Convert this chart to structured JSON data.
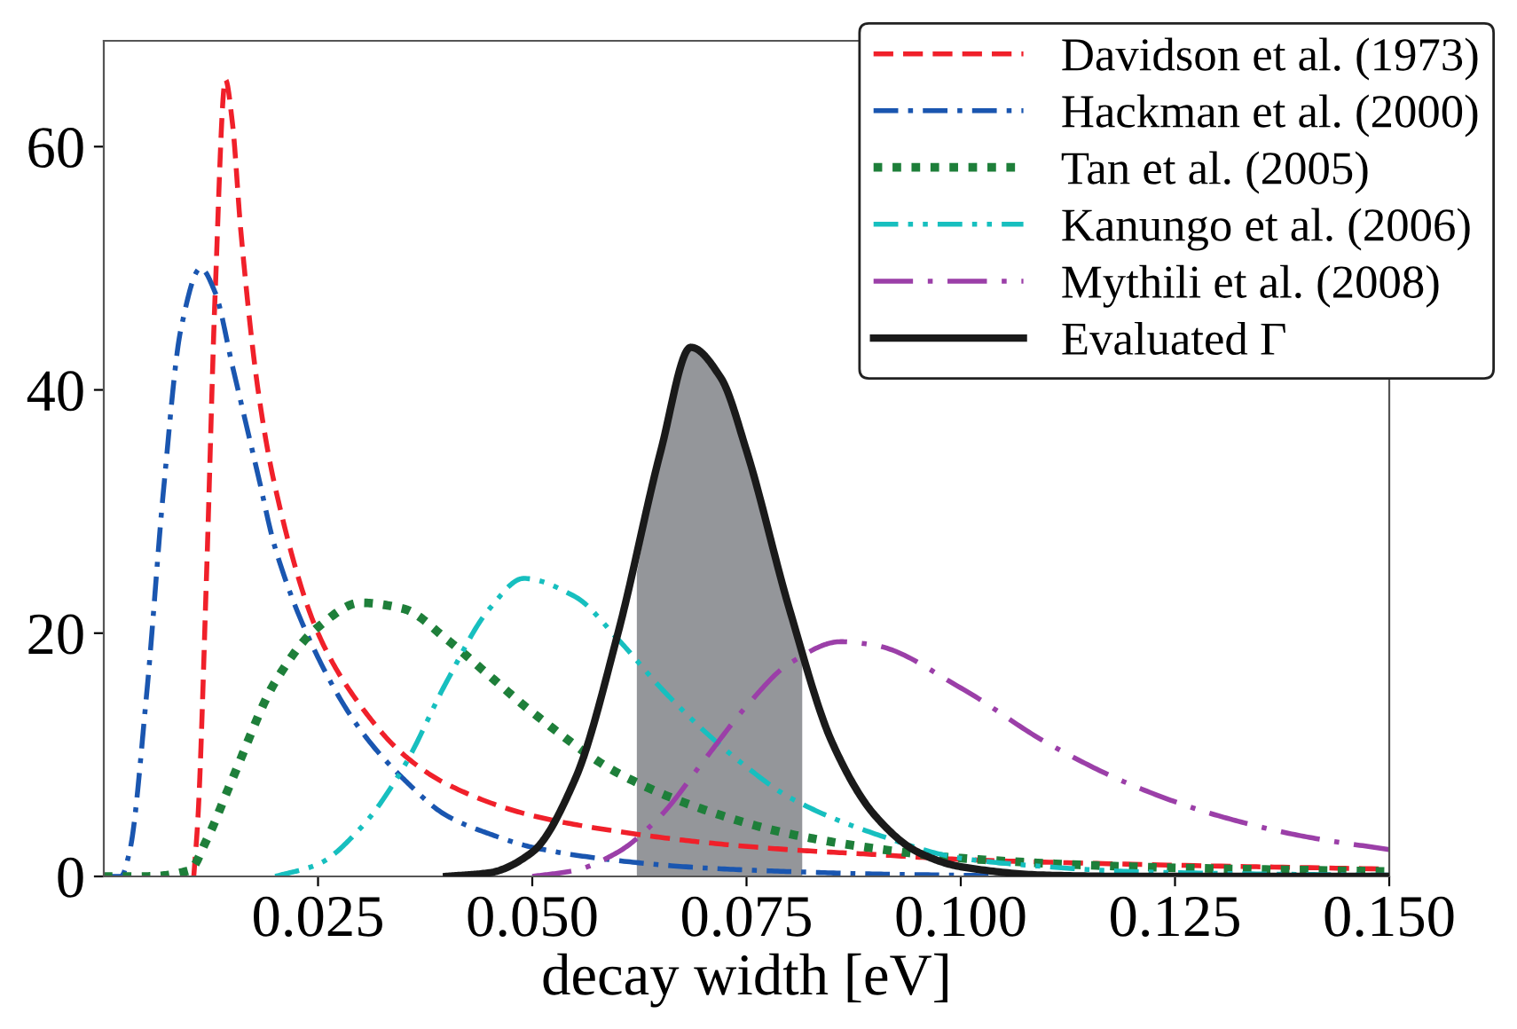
{
  "chart_data": {
    "type": "line",
    "xlabel": "decay width [eV]",
    "xlim": [
      0,
      0.15
    ],
    "ylim": [
      0,
      68.7
    ],
    "xticks": [
      0.025,
      {
        "value": 0.05,
        "label": "0.050"
      },
      {
        "value": 0.075,
        "label": "0.075"
      },
      {
        "value": 0.1,
        "label": "0.100"
      },
      {
        "value": 0.125,
        "label": "0.125"
      },
      {
        "value": 0.15,
        "label": "0.150"
      }
    ],
    "yticks": [
      0,
      20,
      40,
      60
    ],
    "grid": false,
    "legend": "top right",
    "series": [
      {
        "type": "area",
        "color": "#94969a",
        "x": [
          0.0622,
          0.065,
          0.0685,
          0.072,
          0.075,
          0.0815
        ],
        "values": [
          25,
          35,
          43.5,
          41,
          35,
          18
        ]
      },
      {
        "name": "Davidson et al. (1973)",
        "color": "#f0202a",
        "line_style": "dashed",
        "x": [
          0.0105,
          0.011,
          0.012,
          0.013,
          0.0142,
          0.015,
          0.016,
          0.018,
          0.02,
          0.025,
          0.03,
          0.035,
          0.04,
          0.05,
          0.06,
          0.07,
          0.08,
          0.09,
          0.1,
          0.12,
          0.15
        ],
        "values": [
          0,
          5,
          25,
          48,
          65.5,
          62,
          53,
          40,
          32,
          20,
          14,
          10,
          7.6,
          5,
          3.7,
          2.8,
          2.2,
          1.8,
          1.4,
          1.0,
          0.6
        ]
      },
      {
        "name": "Hackman et al. (2000)",
        "color": "#1a56b0",
        "line_style": "dashdot",
        "x": [
          0,
          0.002,
          0.003,
          0.005,
          0.007,
          0.009,
          0.0113,
          0.013,
          0.015,
          0.018,
          0.02,
          0.025,
          0.03,
          0.035,
          0.04,
          0.045,
          0.05,
          0.06,
          0.07,
          0.08,
          0.09,
          0.1,
          0.11
        ],
        "values": [
          0,
          0,
          2,
          15,
          32,
          45,
          50,
          48,
          42,
          33,
          27,
          18,
          12,
          8,
          5,
          3.5,
          2.4,
          1.3,
          0.7,
          0.4,
          0.2,
          0.1,
          0
        ]
      },
      {
        "name": "Tan et al. (2005)",
        "color": "#1e7f3a",
        "line_style": "dotted",
        "x": [
          0,
          0.005,
          0.01,
          0.012,
          0.015,
          0.02,
          0.025,
          0.03,
          0.035,
          0.04,
          0.045,
          0.05,
          0.06,
          0.07,
          0.08,
          0.09,
          0.1,
          0.12,
          0.15
        ],
        "values": [
          0,
          0,
          0.5,
          3,
          8,
          16,
          20.5,
          22.5,
          22,
          19.5,
          16.5,
          13.5,
          8.5,
          5.5,
          3.5,
          2.3,
          1.5,
          0.8,
          0.4
        ]
      },
      {
        "name": "Kanungo et al. (2006)",
        "color": "#17bfbf",
        "line_style": "dashdotdot",
        "x": [
          0.02,
          0.025,
          0.03,
          0.035,
          0.04,
          0.045,
          0.049,
          0.055,
          0.06,
          0.065,
          0.07,
          0.075,
          0.08,
          0.09,
          0.1,
          0.11,
          0.12,
          0.135,
          0.15
        ],
        "values": [
          0,
          1,
          4,
          9,
          16,
          22,
          24.5,
          23,
          19.5,
          15.5,
          12,
          9,
          6.5,
          3.5,
          1.5,
          0.8,
          0.4,
          0.2,
          0.1
        ]
      },
      {
        "name": "Mythili et al. (2008)",
        "color": "#9b3fa8",
        "line_style": "longdashdot",
        "x": [
          0.05,
          0.055,
          0.06,
          0.065,
          0.07,
          0.075,
          0.08,
          0.086,
          0.09,
          0.1,
          0.11,
          0.12,
          0.13,
          0.14,
          0.15
        ],
        "values": [
          0,
          0.5,
          2,
          5,
          9.5,
          14,
          17.5,
          19.3,
          19,
          15.5,
          11,
          7.5,
          5,
          3.3,
          2.2
        ]
      },
      {
        "name": "Evaluated Γ",
        "color": "#1a1a1a",
        "line_style": "solid",
        "x": [
          0.04,
          0.045,
          0.05,
          0.055,
          0.06,
          0.065,
          0.0685,
          0.072,
          0.075,
          0.08,
          0.085,
          0.09,
          0.095,
          0.1,
          0.11,
          0.12,
          0.15
        ],
        "values": [
          0,
          0.3,
          2,
          8,
          20,
          35,
          43.5,
          41,
          35,
          22,
          11,
          5,
          2,
          0.8,
          0.1,
          0,
          0
        ]
      }
    ]
  }
}
